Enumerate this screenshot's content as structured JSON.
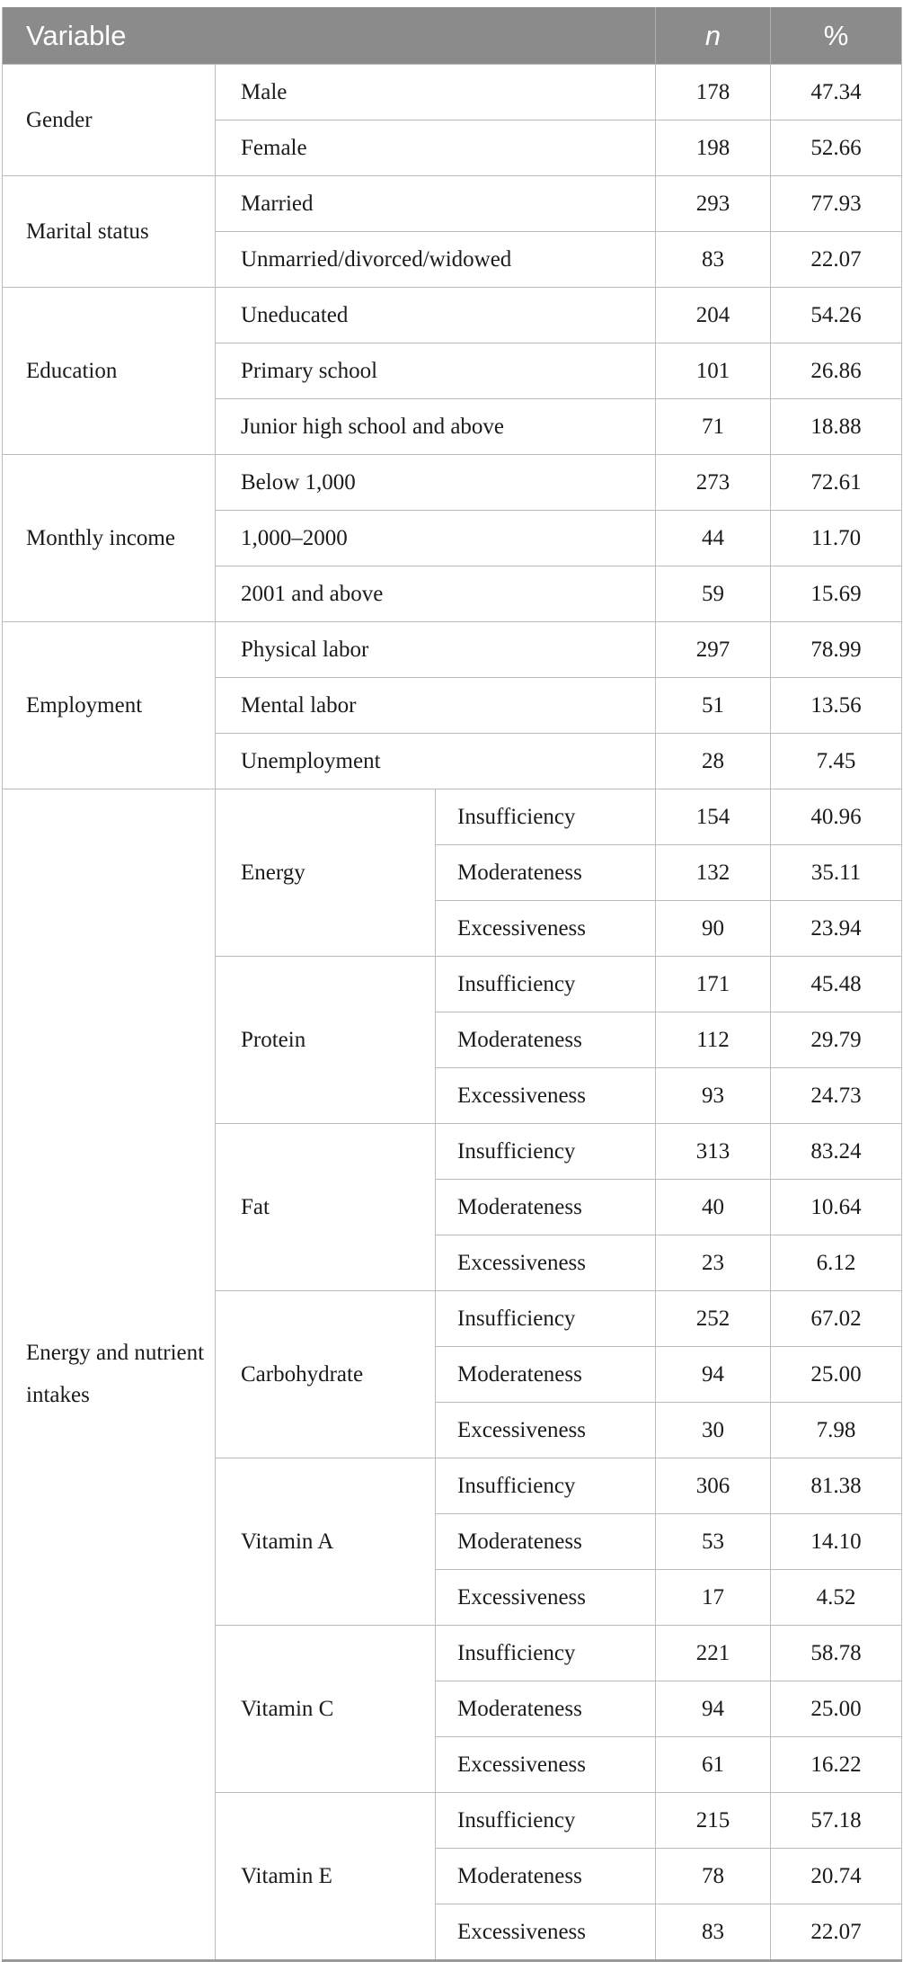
{
  "header": {
    "variable_label": "Variable",
    "n_label": "n",
    "percent_label": "%"
  },
  "colors": {
    "header_background": "#8b8b8b",
    "header_text": "#ffffff",
    "cell_border": "#bcbcbc",
    "table_bottom_border": "#9a9a9a",
    "body_text": "#1b1b1b"
  },
  "sections": [
    {
      "label": "Gender",
      "rows": [
        {
          "category": "Male",
          "n": "178",
          "pct": "47.34"
        },
        {
          "category": "Female",
          "n": "198",
          "pct": "52.66"
        }
      ]
    },
    {
      "label": "Marital status",
      "rows": [
        {
          "category": "Married",
          "n": "293",
          "pct": "77.93"
        },
        {
          "category": "Unmarried/divorced/widowed",
          "n": "83",
          "pct": "22.07"
        }
      ]
    },
    {
      "label": "Education",
      "rows": [
        {
          "category": "Uneducated",
          "n": "204",
          "pct": "54.26"
        },
        {
          "category": "Primary school",
          "n": "101",
          "pct": "26.86"
        },
        {
          "category": "Junior high school and above",
          "n": "71",
          "pct": "18.88"
        }
      ]
    },
    {
      "label": "Monthly income",
      "rows": [
        {
          "category": "Below 1,000",
          "n": "273",
          "pct": "72.61"
        },
        {
          "category": "1,000–2000",
          "n": "44",
          "pct": "11.70"
        },
        {
          "category": "2001 and above",
          "n": "59",
          "pct": "15.69"
        }
      ]
    },
    {
      "label": "Employment",
      "rows": [
        {
          "category": "Physical labor",
          "n": "297",
          "pct": "78.99"
        },
        {
          "category": "Mental labor",
          "n": "51",
          "pct": "13.56"
        },
        {
          "category": "Unemployment",
          "n": "28",
          "pct": "7.45"
        }
      ]
    },
    {
      "label": "Energy and nutrient intakes",
      "groups": [
        {
          "label": "Energy",
          "rows": [
            {
              "category": "Insufficiency",
              "n": "154",
              "pct": "40.96"
            },
            {
              "category": "Moderateness",
              "n": "132",
              "pct": "35.11"
            },
            {
              "category": "Excessiveness",
              "n": "90",
              "pct": "23.94"
            }
          ]
        },
        {
          "label": "Protein",
          "rows": [
            {
              "category": "Insufficiency",
              "n": "171",
              "pct": "45.48"
            },
            {
              "category": "Moderateness",
              "n": "112",
              "pct": "29.79"
            },
            {
              "category": "Excessiveness",
              "n": "93",
              "pct": "24.73"
            }
          ]
        },
        {
          "label": "Fat",
          "rows": [
            {
              "category": "Insufficiency",
              "n": "313",
              "pct": "83.24"
            },
            {
              "category": "Moderateness",
              "n": "40",
              "pct": "10.64"
            },
            {
              "category": "Excessiveness",
              "n": "23",
              "pct": "6.12"
            }
          ]
        },
        {
          "label": "Carbohydrate",
          "rows": [
            {
              "category": "Insufficiency",
              "n": "252",
              "pct": "67.02"
            },
            {
              "category": "Moderateness",
              "n": "94",
              "pct": "25.00"
            },
            {
              "category": "Excessiveness",
              "n": "30",
              "pct": "7.98"
            }
          ]
        },
        {
          "label": "Vitamin A",
          "rows": [
            {
              "category": "Insufficiency",
              "n": "306",
              "pct": "81.38"
            },
            {
              "category": "Moderateness",
              "n": "53",
              "pct": "14.10"
            },
            {
              "category": "Excessiveness",
              "n": "17",
              "pct": "4.52"
            }
          ]
        },
        {
          "label": "Vitamin C",
          "rows": [
            {
              "category": "Insufficiency",
              "n": "221",
              "pct": "58.78"
            },
            {
              "category": "Moderateness",
              "n": "94",
              "pct": "25.00"
            },
            {
              "category": "Excessiveness",
              "n": "61",
              "pct": "16.22"
            }
          ]
        },
        {
          "label": "Vitamin E",
          "rows": [
            {
              "category": "Insufficiency",
              "n": "215",
              "pct": "57.18"
            },
            {
              "category": "Moderateness",
              "n": "78",
              "pct": "20.74"
            },
            {
              "category": "Excessiveness",
              "n": "83",
              "pct": "22.07"
            }
          ]
        }
      ]
    }
  ]
}
